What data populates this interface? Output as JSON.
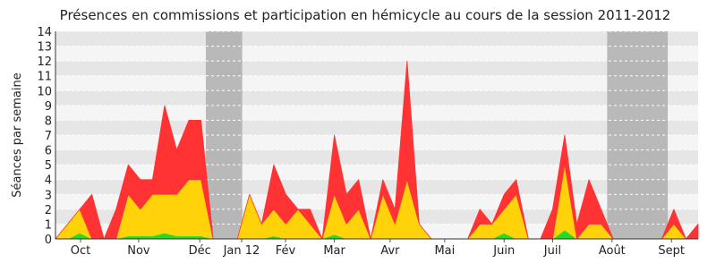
{
  "chart_data": {
    "type": "stacked-area",
    "title": "Présences en commissions et participation en hémicycle au cours de la session 2011-2012",
    "y_label": "Séances par semaine",
    "x": [
      0,
      1,
      2,
      3,
      4,
      5,
      6,
      7,
      8,
      9,
      10,
      11,
      12,
      13,
      14,
      15,
      16,
      17,
      18,
      19,
      20,
      21,
      22,
      23,
      24,
      25,
      26,
      27,
      28,
      29,
      30,
      31,
      32,
      33,
      34,
      35,
      36,
      37,
      38,
      39,
      40,
      41,
      42,
      43,
      44,
      45,
      46,
      47,
      48,
      49,
      50,
      51,
      52,
      53
    ],
    "xlim": [
      0,
      53
    ],
    "xticks": [
      {
        "value": 2.07,
        "label": "Oct"
      },
      {
        "value": 6.86,
        "label": "Nov"
      },
      {
        "value": 11.9,
        "label": "Déc"
      },
      {
        "value": 15.35,
        "label": "Jan 12"
      },
      {
        "value": 18.97,
        "label": "Fév"
      },
      {
        "value": 23.0,
        "label": "Mar"
      },
      {
        "value": 27.6,
        "label": "Avr"
      },
      {
        "value": 32.1,
        "label": "Mai"
      },
      {
        "value": 37.0,
        "label": "Juin"
      },
      {
        "value": 41.0,
        "label": "Juil"
      },
      {
        "value": 45.9,
        "label": "Août"
      },
      {
        "value": 50.8,
        "label": "Sept"
      }
    ],
    "ylim": [
      0,
      14
    ],
    "yticks": [
      0,
      1,
      2,
      3,
      4,
      5,
      6,
      7,
      8,
      9,
      10,
      11,
      12,
      13,
      14
    ],
    "grid": true,
    "shaded_ranges": [
      [
        12.4,
        15.4
      ],
      [
        45.5,
        50.5
      ]
    ],
    "series": [
      {
        "color": "#22dd22",
        "values": [
          0,
          0,
          0.4,
          0,
          0,
          0,
          0.2,
          0.2,
          0.2,
          0.4,
          0.2,
          0.2,
          0.2,
          0,
          0,
          0,
          0,
          0,
          0.2,
          0,
          0,
          0,
          0,
          0.3,
          0,
          0,
          0,
          0,
          0,
          0,
          0,
          0,
          0,
          0,
          0,
          0,
          0,
          0.4,
          0,
          0,
          0,
          0,
          0.6,
          0,
          0,
          0,
          0,
          0,
          0,
          0,
          0,
          0,
          0,
          0
        ]
      },
      {
        "color": "#ffd20a",
        "values": [
          0,
          1,
          1.6,
          0,
          0,
          0,
          2.8,
          1.8,
          2.8,
          2.6,
          2.8,
          3.8,
          3.8,
          0,
          0,
          0,
          3,
          1,
          1.8,
          1,
          2,
          1,
          0,
          2.7,
          1,
          2,
          0,
          3,
          1,
          4,
          1,
          0,
          0,
          0,
          0,
          1,
          1,
          1.6,
          3,
          0,
          0,
          0,
          4.4,
          0,
          1,
          1,
          0,
          0,
          0,
          0,
          0,
          1,
          0,
          0
        ]
      },
      {
        "color": "#ff3333",
        "values": [
          0,
          0,
          0,
          3,
          0,
          2,
          2,
          2,
          1,
          6,
          3,
          4,
          4,
          0,
          0,
          0,
          0,
          0,
          3,
          2,
          0,
          1,
          0,
          4,
          2,
          2,
          0,
          1,
          1,
          8,
          0,
          0,
          0,
          0,
          0,
          1,
          0,
          1,
          1,
          0,
          0,
          2,
          2,
          1,
          3,
          1,
          0,
          0,
          0,
          0,
          0,
          1,
          0,
          1
        ]
      }
    ]
  }
}
